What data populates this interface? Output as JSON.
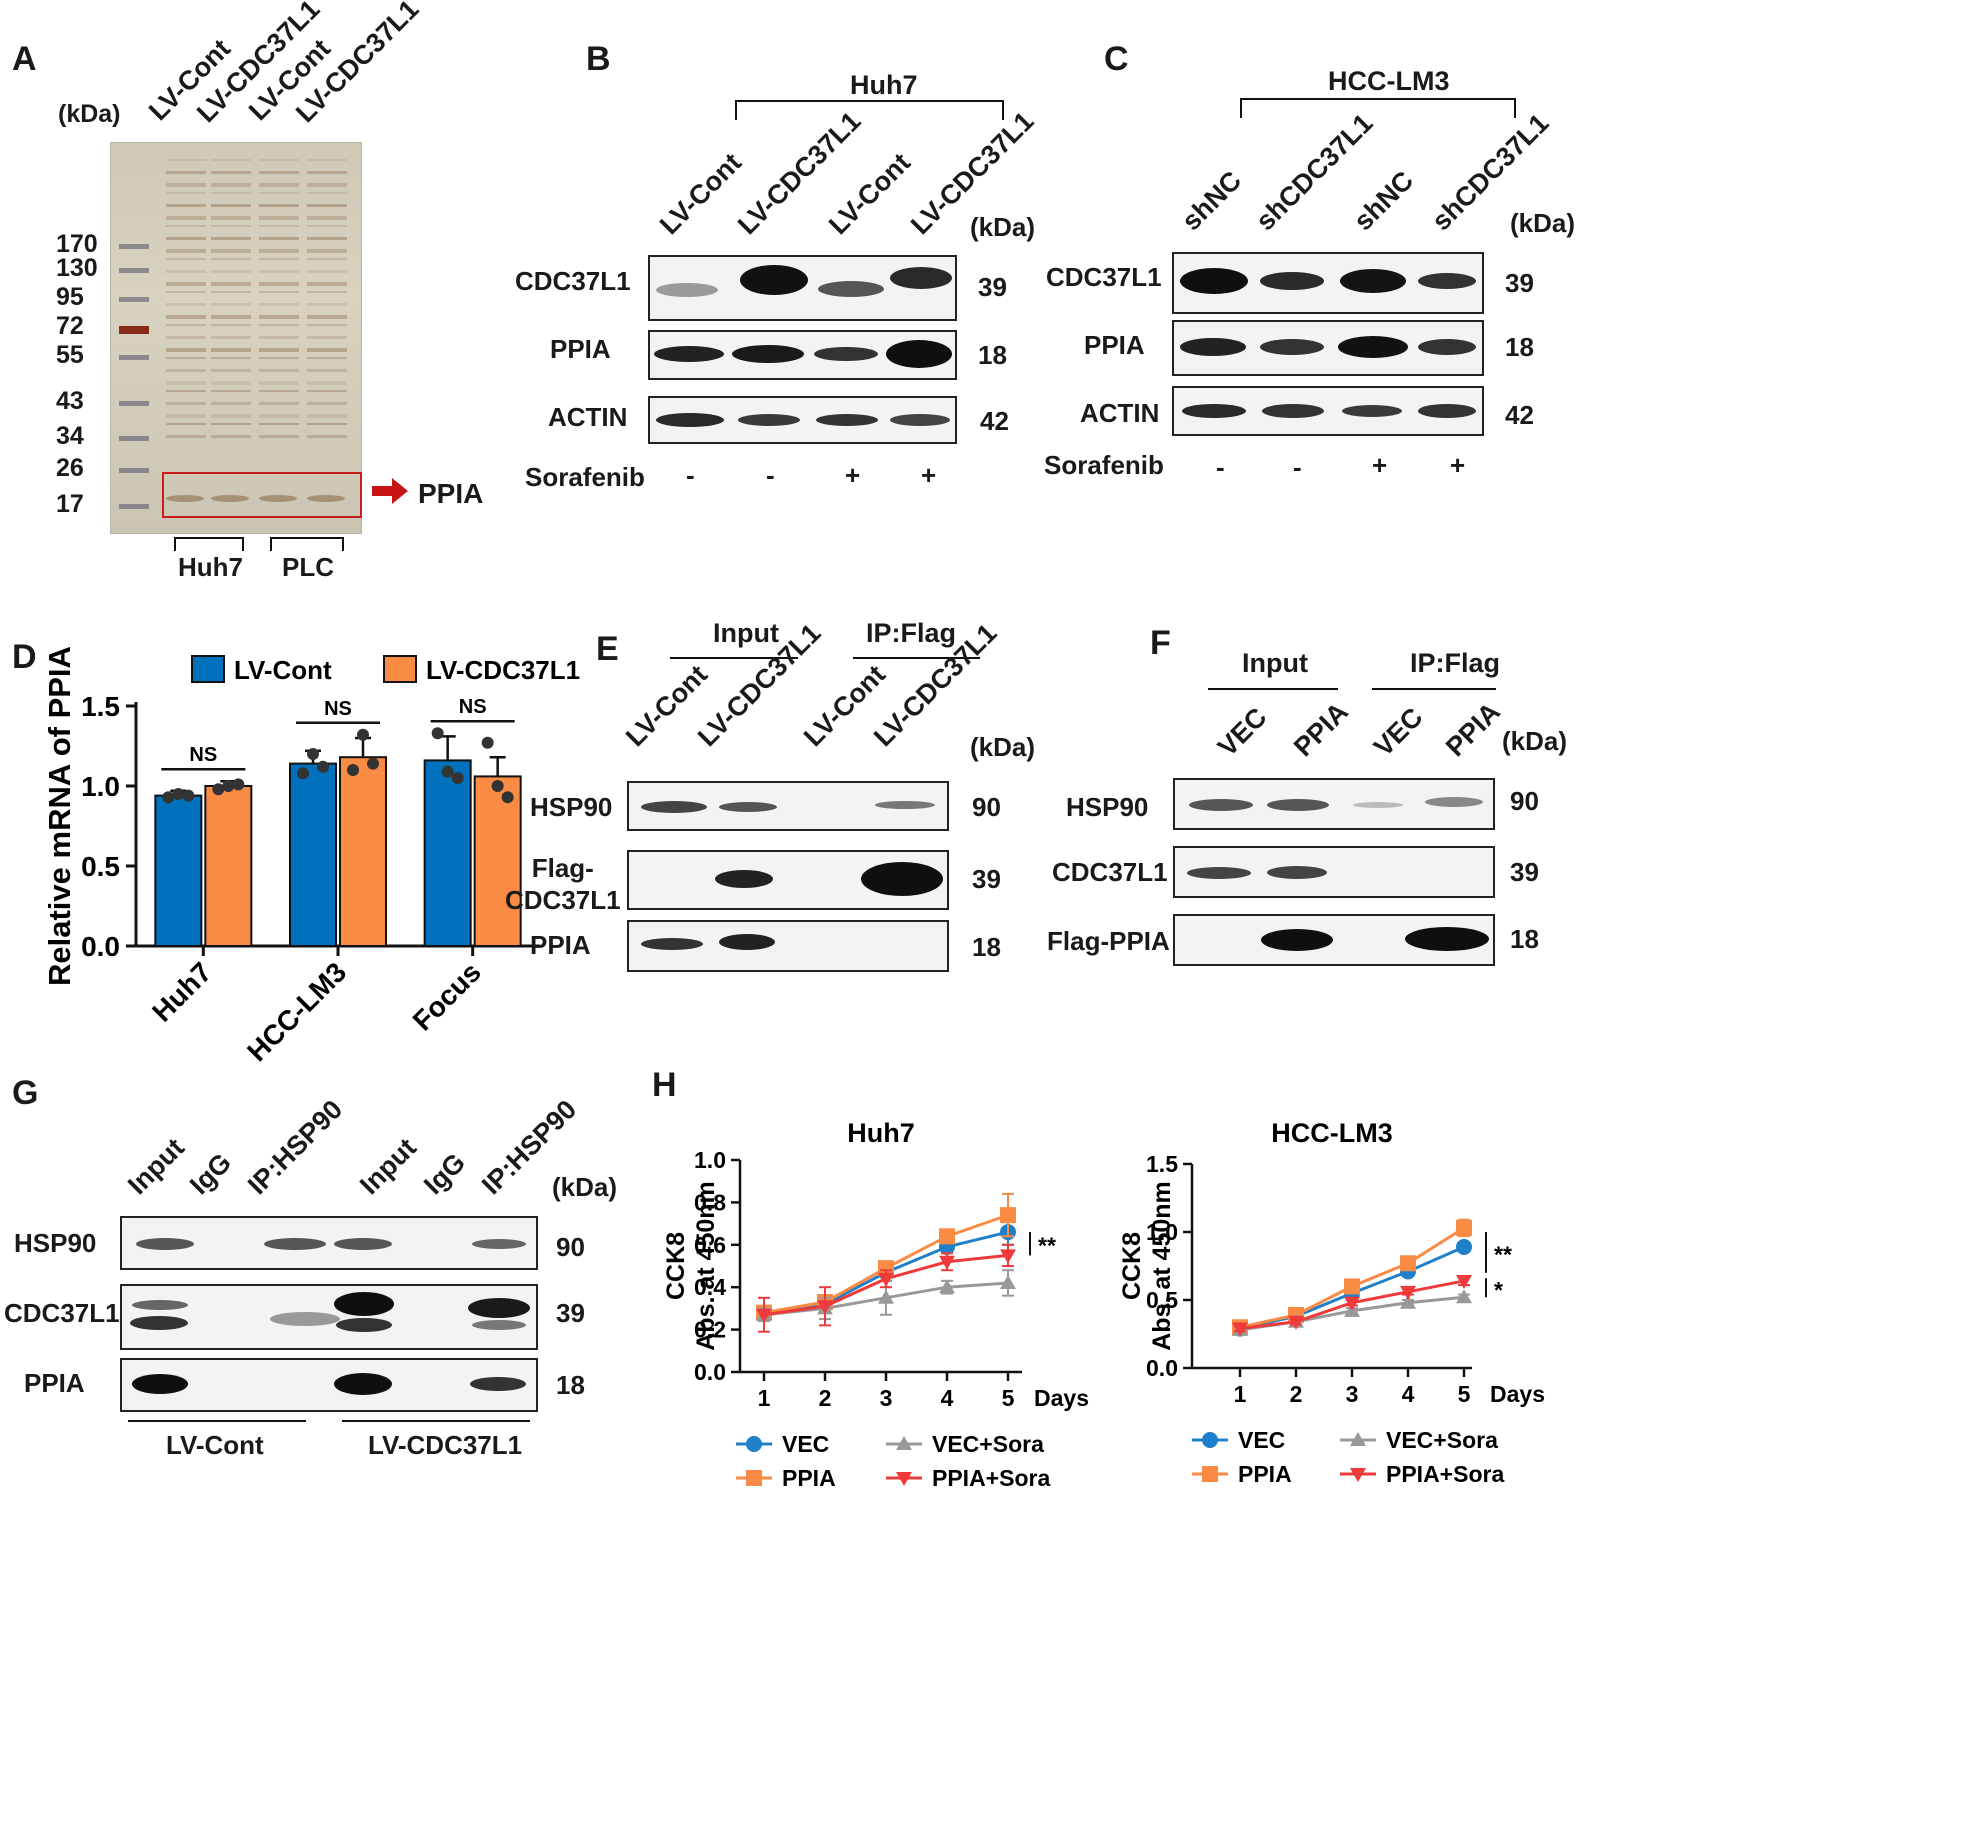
{
  "panelA": {
    "label": "A",
    "kda": "(kDa)",
    "lanes": [
      "LV-Cont",
      "LV-CDC37L1",
      "LV-Cont",
      "LV-CDC37L1"
    ],
    "markers": [
      "170",
      "130",
      "95",
      "72",
      "55",
      "43",
      "34",
      "26",
      "17"
    ],
    "arrow_label": "PPIA",
    "groups": [
      "Huh7",
      "PLC"
    ]
  },
  "panelB": {
    "label": "B",
    "cell_line": "Huh7",
    "kda": "(kDa)",
    "lanes": [
      "LV-Cont",
      "LV-CDC37L1",
      "LV-Cont",
      "LV-CDC37L1"
    ],
    "rows": [
      {
        "protein": "CDC37L1",
        "kda": "39"
      },
      {
        "protein": "PPIA",
        "kda": "18"
      },
      {
        "protein": "ACTIN",
        "kda": "42"
      }
    ],
    "treatment": "Sorafenib",
    "signs": [
      "-",
      "-",
      "+",
      "+"
    ]
  },
  "panelC": {
    "label": "C",
    "cell_line": "HCC-LM3",
    "kda": "(kDa)",
    "lanes": [
      "shNC",
      "shCDC37L1",
      "shNC",
      "shCDC37L1"
    ],
    "rows": [
      {
        "protein": "CDC37L1",
        "kda": "39"
      },
      {
        "protein": "PPIA",
        "kda": "18"
      },
      {
        "protein": "ACTIN",
        "kda": "42"
      }
    ],
    "treatment": "Sorafenib",
    "signs": [
      "-",
      "-",
      "+",
      "+"
    ]
  },
  "panelE": {
    "label": "E",
    "group1": "Input",
    "group2": "IP:Flag",
    "kda": "(kDa)",
    "lanes": [
      "LV-Cont",
      "LV-CDC37L1",
      "LV-Cont",
      "LV-CDC37L1"
    ],
    "rows": [
      {
        "protein": "HSP90",
        "kda": "90"
      },
      {
        "protein": "Flag-\nCDC37L1",
        "kda": "39"
      },
      {
        "protein": "PPIA",
        "kda": "18"
      }
    ]
  },
  "panelF": {
    "label": "F",
    "group1": "Input",
    "group2": "IP:Flag",
    "kda": "(kDa)",
    "lanes": [
      "VEC",
      "PPIA",
      "VEC",
      "PPIA"
    ],
    "rows": [
      {
        "protein": "HSP90",
        "kda": "90"
      },
      {
        "protein": "CDC37L1",
        "kda": "39"
      },
      {
        "protein": "Flag-PPIA",
        "kda": "18"
      }
    ]
  },
  "panelG": {
    "label": "G",
    "kda": "(kDa)",
    "lanes": [
      "Input",
      "IgG",
      "IP:HSP90",
      "Input",
      "IgG",
      "IP:HSP90"
    ],
    "rows": [
      {
        "protein": "HSP90",
        "kda": "90"
      },
      {
        "protein": "CDC37L1",
        "kda": "39"
      },
      {
        "protein": "PPIA",
        "kda": "18"
      }
    ],
    "groups": [
      "LV-Cont",
      "LV-CDC37L1"
    ]
  },
  "panelD": {
    "label": "D"
  },
  "panelH": {
    "label": "H"
  },
  "chart_data": [
    {
      "type": "bar",
      "title": "",
      "ylabel": "Relative mRNA of PPIA",
      "categories": [
        "Huh7",
        "HCC-LM3",
        "Focus"
      ],
      "ylim": [
        0,
        1.5
      ],
      "yticks": [
        "0.0",
        "0.5",
        "1.0",
        "1.5"
      ],
      "legend": "top",
      "series": [
        {
          "name": "LV-Cont",
          "values": [
            0.94,
            1.14,
            1.16
          ],
          "errors": [
            0.03,
            0.08,
            0.15
          ],
          "points": [
            [
              0.93,
              0.95,
              0.94
            ],
            [
              1.08,
              1.2,
              1.12
            ],
            [
              1.33,
              1.09,
              1.05
            ]
          ],
          "color": "#0072bd"
        },
        {
          "name": "LV-CDC37L1",
          "values": [
            1.0,
            1.18,
            1.06
          ],
          "errors": [
            0.03,
            0.12,
            0.12
          ],
          "points": [
            [
              0.98,
              1.0,
              1.01
            ],
            [
              1.1,
              1.32,
              1.14
            ],
            [
              1.27,
              1.0,
              0.93
            ]
          ],
          "color": "#f98b45"
        }
      ],
      "annotations": [
        "NS",
        "NS",
        "NS"
      ]
    },
    {
      "type": "line",
      "title": "Huh7",
      "ylabel": "CCK8\nAbs. at 450nm",
      "xlabel": "Days",
      "x": [
        1,
        2,
        3,
        4,
        5
      ],
      "ylim": [
        0.0,
        1.0
      ],
      "yticks": [
        "0.0",
        "0.2",
        "0.4",
        "0.6",
        "0.8",
        "1.0"
      ],
      "series": [
        {
          "name": "VEC",
          "values": [
            0.28,
            0.32,
            0.47,
            0.59,
            0.66
          ],
          "errors": [
            0.03,
            0.03,
            0.04,
            0.02,
            0.06
          ],
          "color": "#1f7fc8",
          "marker": "circle"
        },
        {
          "name": "PPIA",
          "values": [
            0.28,
            0.33,
            0.49,
            0.64,
            0.74
          ],
          "errors": [
            0.03,
            0.03,
            0.03,
            0.02,
            0.1
          ],
          "color": "#f98b45",
          "marker": "square"
        },
        {
          "name": "VEC+Sora",
          "values": [
            0.27,
            0.3,
            0.35,
            0.4,
            0.42
          ],
          "errors": [
            0.03,
            0.05,
            0.08,
            0.03,
            0.06
          ],
          "color": "#999999",
          "marker": "triangle-up"
        },
        {
          "name": "PPIA+Sora",
          "values": [
            0.27,
            0.31,
            0.44,
            0.52,
            0.55
          ],
          "errors": [
            0.08,
            0.09,
            0.04,
            0.04,
            0.05
          ],
          "color": "#ee3a3a",
          "marker": "triangle-down"
        }
      ],
      "annotations": [
        "**"
      ]
    },
    {
      "type": "line",
      "title": "HCC-LM3",
      "ylabel": "CCK8\nAbs. at 450nm",
      "xlabel": "Days",
      "x": [
        1,
        2,
        3,
        4,
        5
      ],
      "ylim": [
        0.0,
        1.5
      ],
      "yticks": [
        "0.0",
        "0.5",
        "1.0",
        "1.5"
      ],
      "series": [
        {
          "name": "VEC",
          "values": [
            0.29,
            0.38,
            0.55,
            0.71,
            0.89
          ],
          "errors": [
            0.02,
            0.02,
            0.02,
            0.02,
            0.03
          ],
          "color": "#1f7fc8",
          "marker": "circle"
        },
        {
          "name": "PPIA",
          "values": [
            0.3,
            0.39,
            0.6,
            0.77,
            1.03
          ],
          "errors": [
            0.02,
            0.02,
            0.02,
            0.02,
            0.06
          ],
          "color": "#f98b45",
          "marker": "square"
        },
        {
          "name": "VEC+Sora",
          "values": [
            0.28,
            0.34,
            0.42,
            0.48,
            0.52
          ],
          "errors": [
            0.02,
            0.02,
            0.02,
            0.02,
            0.02
          ],
          "color": "#999999",
          "marker": "triangle-up"
        },
        {
          "name": "PPIA+Sora",
          "values": [
            0.29,
            0.34,
            0.48,
            0.56,
            0.64
          ],
          "errors": [
            0.02,
            0.02,
            0.02,
            0.02,
            0.03
          ],
          "color": "#ee3a3a",
          "marker": "triangle-down"
        }
      ],
      "annotations": [
        "**",
        "*"
      ]
    }
  ]
}
